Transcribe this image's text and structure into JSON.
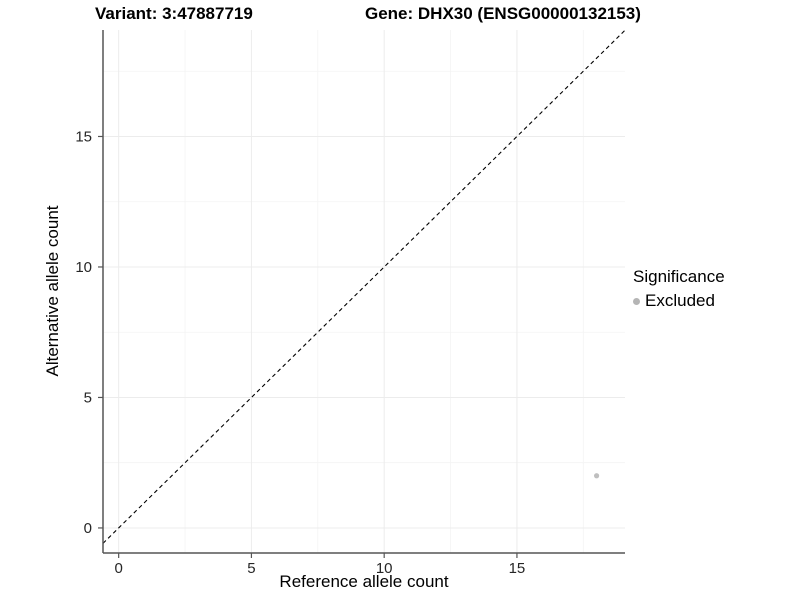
{
  "header": {
    "variant_title": "Variant: 3:47887719",
    "gene_title": "Gene: DHX30 (ENSG00000132153)"
  },
  "chart_data": {
    "type": "scatter",
    "title": "",
    "xlabel": "Reference allele count",
    "ylabel": "Alternative allele count",
    "x_domain": [
      -0.59,
      19.07
    ],
    "y_domain": [
      -0.96,
      19.08
    ],
    "x_major_ticks": [
      0,
      5,
      10,
      15
    ],
    "y_major_ticks": [
      0,
      5,
      10,
      15
    ],
    "x_minor_ticks": [
      2.5,
      7.5,
      12.5,
      17.5
    ],
    "y_minor_ticks": [
      2.5,
      7.5,
      12.5,
      17.5
    ],
    "grid": true,
    "reference_line": {
      "kind": "abline",
      "slope": 1,
      "intercept": 0,
      "style": "dashed",
      "color": "#000000"
    },
    "series": [
      {
        "name": "Excluded",
        "color": "#bfbfbf",
        "points": [
          {
            "x": 18,
            "y": 2
          }
        ]
      }
    ],
    "legend": {
      "title": "Significance",
      "position": "right",
      "items": [
        {
          "label": "Excluded",
          "color": "#b5b5b5"
        }
      ]
    },
    "colors": {
      "axis_line": "#555555",
      "grid_major": "#ececec",
      "grid_minor": "#f4f4f4",
      "tick_text": "#262626"
    }
  }
}
